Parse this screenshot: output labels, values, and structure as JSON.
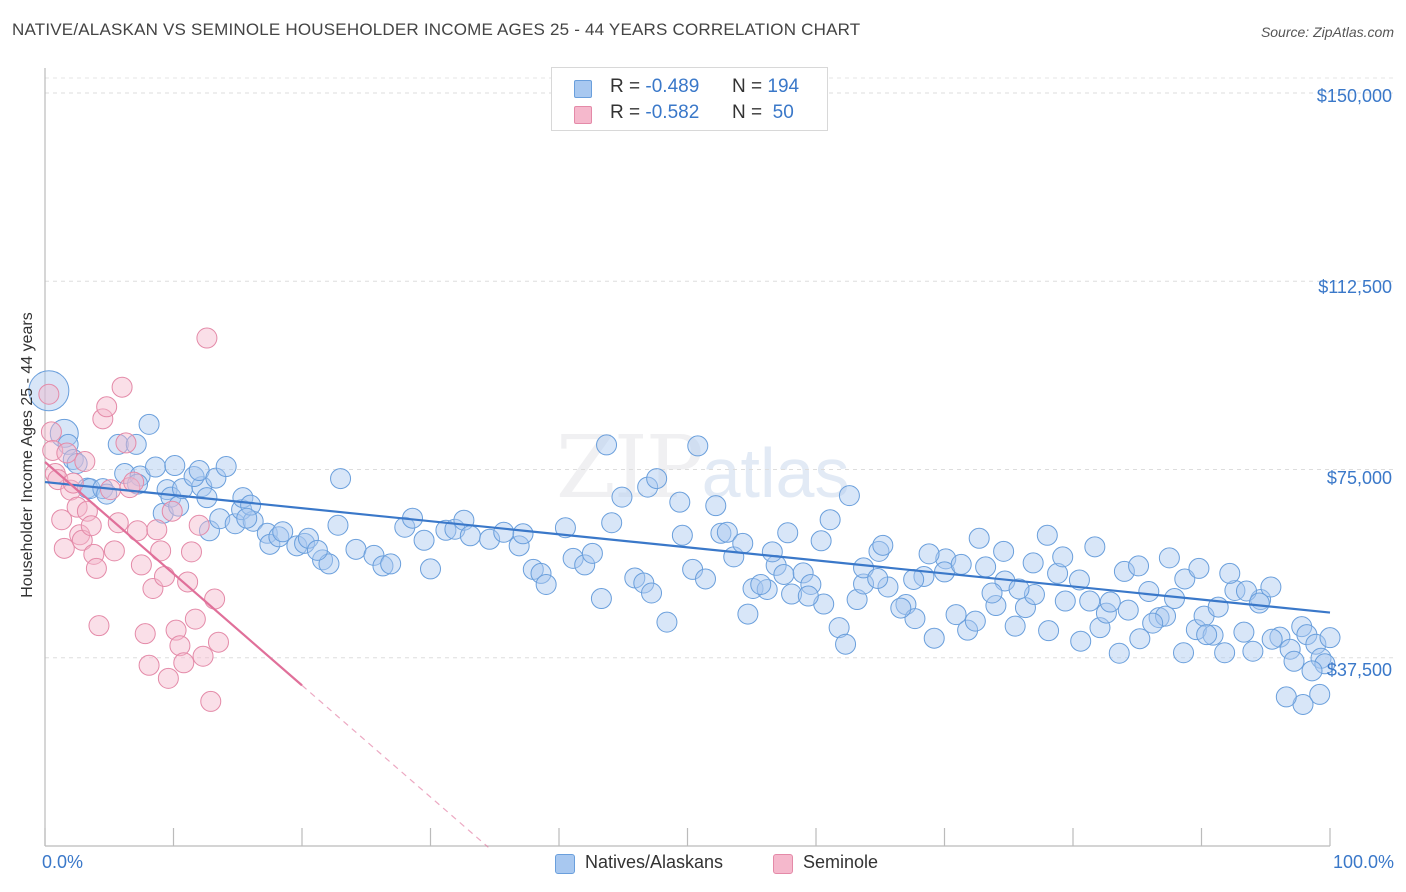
{
  "header": {
    "title": "NATIVE/ALASKAN VS SEMINOLE HOUSEHOLDER INCOME AGES 25 - 44 YEARS CORRELATION CHART",
    "source": "Source: ZipAtlas.com"
  },
  "watermark": {
    "part_a": "ZIP",
    "part_b": "atlas"
  },
  "stats": [
    {
      "r_label": "R =",
      "r_value": "-0.489",
      "n_label": "N =",
      "n_value": "194",
      "color": "#a8c8f0"
    },
    {
      "r_label": "R =",
      "r_value": "-0.582",
      "n_label": "N =",
      "n_value": "50",
      "color": "#f5b8cc"
    }
  ],
  "legend": [
    {
      "label": "Natives/Alaskans",
      "color": "#a8c8f0"
    },
    {
      "label": "Seminole",
      "color": "#f5b8cc"
    }
  ],
  "colors": {
    "blue": "#3a78c9",
    "blue_fill": "#a8c8f0",
    "pink": "#e0709a",
    "pink_fill": "#f5b8cc",
    "grid": "#d5d5d5",
    "tick_text": "#3a78c9"
  },
  "chart_data": {
    "type": "scatter",
    "title": "NATIVE/ALASKAN VS SEMINOLE HOUSEHOLDER INCOME AGES 25 - 44 YEARS CORRELATION CHART",
    "xlabel": "",
    "ylabel": "Householder Income Ages 25 - 44 years",
    "xlim": [
      0,
      100
    ],
    "ylim": [
      0,
      153000
    ],
    "x_tick_labels": [
      "0.0%",
      "100.0%"
    ],
    "y_ticks": [
      37500,
      75000,
      112500,
      150000
    ],
    "y_tick_labels": [
      "$37,500",
      "$75,000",
      "$112,500",
      "$150,000"
    ],
    "grid": true,
    "legend_position": "bottom-center",
    "series": [
      {
        "name": "Natives/Alaskans",
        "color": "#a8c8f0",
        "trend": {
          "x": [
            0,
            100
          ],
          "y": [
            72500,
            46500
          ]
        },
        "points": [
          [
            0.3,
            90700
          ],
          [
            1.5,
            82200
          ],
          [
            1.8,
            80000
          ],
          [
            2.2,
            77000
          ],
          [
            2.5,
            76200
          ],
          [
            3.3,
            71300
          ],
          [
            3.5,
            71200
          ],
          [
            4.5,
            71200
          ],
          [
            4.8,
            70100
          ],
          [
            5.7,
            80000
          ],
          [
            6.2,
            74200
          ],
          [
            7.1,
            80000
          ],
          [
            7.4,
            73700
          ],
          [
            7.2,
            72100
          ],
          [
            8.6,
            75500
          ],
          [
            9.2,
            66300
          ],
          [
            8.1,
            84000
          ],
          [
            9.5,
            71000
          ],
          [
            10.1,
            75800
          ],
          [
            9.8,
            69500
          ],
          [
            10.4,
            67700
          ],
          [
            10.7,
            71200
          ],
          [
            12.2,
            71600
          ],
          [
            11.6,
            73600
          ],
          [
            12.0,
            74800
          ],
          [
            12.8,
            62800
          ],
          [
            12.6,
            69400
          ],
          [
            13.3,
            73300
          ],
          [
            13.6,
            65200
          ],
          [
            14.1,
            75600
          ],
          [
            14.8,
            64200
          ],
          [
            15.3,
            67000
          ],
          [
            15.4,
            69400
          ],
          [
            16.2,
            64700
          ],
          [
            16.0,
            67900
          ],
          [
            17.3,
            62300
          ],
          [
            15.7,
            65300
          ],
          [
            17.5,
            60100
          ],
          [
            18.2,
            61600
          ],
          [
            18.5,
            62600
          ],
          [
            19.6,
            59800
          ],
          [
            20.2,
            60300
          ],
          [
            20.5,
            61300
          ],
          [
            21.6,
            57000
          ],
          [
            22.1,
            56200
          ],
          [
            21.2,
            58900
          ],
          [
            22.8,
            63900
          ],
          [
            23.0,
            73200
          ],
          [
            24.2,
            59100
          ],
          [
            25.6,
            57900
          ],
          [
            26.3,
            55800
          ],
          [
            26.9,
            56200
          ],
          [
            28.0,
            63500
          ],
          [
            28.6,
            65300
          ],
          [
            29.5,
            60900
          ],
          [
            30.0,
            55200
          ],
          [
            31.2,
            62900
          ],
          [
            31.9,
            63100
          ],
          [
            32.6,
            64900
          ],
          [
            33.1,
            61800
          ],
          [
            34.6,
            61100
          ],
          [
            35.7,
            62500
          ],
          [
            36.9,
            59800
          ],
          [
            37.2,
            62200
          ],
          [
            38.0,
            55100
          ],
          [
            38.6,
            54300
          ],
          [
            39.0,
            52100
          ],
          [
            40.5,
            63400
          ],
          [
            41.1,
            57300
          ],
          [
            42.0,
            56000
          ],
          [
            42.6,
            58300
          ],
          [
            43.3,
            49300
          ],
          [
            44.1,
            64400
          ],
          [
            44.9,
            69500
          ],
          [
            45.9,
            53400
          ],
          [
            46.6,
            52400
          ],
          [
            47.2,
            50400
          ],
          [
            48.4,
            44600
          ],
          [
            49.6,
            61900
          ],
          [
            50.4,
            55100
          ],
          [
            51.4,
            53200
          ],
          [
            52.6,
            62300
          ],
          [
            53.6,
            57600
          ],
          [
            54.7,
            46200
          ],
          [
            55.1,
            51300
          ],
          [
            56.2,
            51100
          ],
          [
            56.9,
            55900
          ],
          [
            57.5,
            54100
          ],
          [
            58.1,
            50200
          ],
          [
            59.0,
            54400
          ],
          [
            59.6,
            52100
          ],
          [
            60.6,
            48200
          ],
          [
            61.8,
            43500
          ],
          [
            62.3,
            40200
          ],
          [
            63.2,
            49100
          ],
          [
            63.7,
            52200
          ],
          [
            64.9,
            58700
          ],
          [
            65.6,
            51600
          ],
          [
            67.0,
            48100
          ],
          [
            67.7,
            45300
          ],
          [
            68.4,
            53700
          ],
          [
            69.2,
            41400
          ],
          [
            70.1,
            57200
          ],
          [
            70.9,
            46100
          ],
          [
            71.8,
            43000
          ],
          [
            72.4,
            44800
          ],
          [
            73.2,
            55600
          ],
          [
            74.0,
            47900
          ],
          [
            74.7,
            52800
          ],
          [
            75.5,
            43800
          ],
          [
            76.3,
            47500
          ],
          [
            77.0,
            50100
          ],
          [
            78.1,
            42900
          ],
          [
            78.8,
            54300
          ],
          [
            79.4,
            48800
          ],
          [
            80.6,
            40800
          ],
          [
            81.3,
            48800
          ],
          [
            82.1,
            43500
          ],
          [
            82.6,
            46400
          ],
          [
            83.6,
            38400
          ],
          [
            84.3,
            47000
          ],
          [
            85.2,
            41300
          ],
          [
            85.9,
            50700
          ],
          [
            86.7,
            45500
          ],
          [
            87.2,
            45800
          ],
          [
            87.9,
            49300
          ],
          [
            88.6,
            38500
          ],
          [
            89.6,
            43100
          ],
          [
            90.2,
            45800
          ],
          [
            90.9,
            42000
          ],
          [
            91.8,
            38500
          ],
          [
            92.6,
            50900
          ],
          [
            93.3,
            42600
          ],
          [
            94.0,
            38800
          ],
          [
            94.6,
            49100
          ],
          [
            95.4,
            51600
          ],
          [
            96.1,
            41600
          ],
          [
            96.9,
            39200
          ],
          [
            97.2,
            36800
          ],
          [
            97.8,
            43700
          ],
          [
            98.2,
            42100
          ],
          [
            98.9,
            40200
          ],
          [
            99.3,
            37400
          ],
          [
            100.0,
            41500
          ],
          [
            99.6,
            36300
          ],
          [
            99.2,
            30200
          ],
          [
            98.6,
            34900
          ],
          [
            97.9,
            28200
          ],
          [
            96.6,
            29700
          ],
          [
            43.7,
            79900
          ],
          [
            46.9,
            71500
          ],
          [
            47.6,
            73200
          ],
          [
            49.4,
            68500
          ],
          [
            50.8,
            79700
          ],
          [
            52.2,
            67800
          ],
          [
            53.1,
            62500
          ],
          [
            54.3,
            60300
          ],
          [
            55.7,
            52100
          ],
          [
            56.6,
            58600
          ],
          [
            57.8,
            62400
          ],
          [
            59.4,
            49800
          ],
          [
            60.4,
            60800
          ],
          [
            61.1,
            65000
          ],
          [
            62.6,
            69800
          ],
          [
            63.7,
            55400
          ],
          [
            64.8,
            53300
          ],
          [
            65.2,
            59900
          ],
          [
            66.6,
            47400
          ],
          [
            67.6,
            53100
          ],
          [
            68.8,
            58200
          ],
          [
            70.0,
            54600
          ],
          [
            71.3,
            56100
          ],
          [
            72.7,
            61300
          ],
          [
            73.7,
            50400
          ],
          [
            74.6,
            58700
          ],
          [
            75.8,
            51200
          ],
          [
            76.9,
            56400
          ],
          [
            78.0,
            61900
          ],
          [
            79.2,
            57600
          ],
          [
            80.5,
            53000
          ],
          [
            81.7,
            59600
          ],
          [
            82.9,
            48600
          ],
          [
            84.0,
            54700
          ],
          [
            85.1,
            55800
          ],
          [
            86.2,
            44400
          ],
          [
            87.5,
            57400
          ],
          [
            88.7,
            53200
          ],
          [
            89.8,
            55300
          ],
          [
            90.4,
            42100
          ],
          [
            91.3,
            47600
          ],
          [
            92.2,
            54300
          ],
          [
            93.5,
            50800
          ],
          [
            94.5,
            48400
          ],
          [
            95.5,
            41200
          ]
        ]
      },
      {
        "name": "Seminole",
        "color": "#f5b8cc",
        "trend": {
          "x": [
            0,
            20
          ],
          "y": [
            76500,
            32000
          ]
        },
        "points": [
          [
            0.3,
            90000
          ],
          [
            0.5,
            82500
          ],
          [
            0.6,
            78800
          ],
          [
            0.8,
            74200
          ],
          [
            1.0,
            73000
          ],
          [
            1.3,
            65000
          ],
          [
            1.5,
            59300
          ],
          [
            1.7,
            78300
          ],
          [
            2.0,
            70900
          ],
          [
            2.2,
            72300
          ],
          [
            2.5,
            67500
          ],
          [
            2.7,
            62000
          ],
          [
            2.9,
            60900
          ],
          [
            3.1,
            76600
          ],
          [
            3.3,
            66700
          ],
          [
            3.6,
            63800
          ],
          [
            3.8,
            58100
          ],
          [
            4.0,
            55300
          ],
          [
            4.2,
            43900
          ],
          [
            4.5,
            85100
          ],
          [
            4.8,
            87500
          ],
          [
            5.1,
            71000
          ],
          [
            5.4,
            58800
          ],
          [
            5.7,
            64400
          ],
          [
            6.0,
            91400
          ],
          [
            6.3,
            80300
          ],
          [
            6.6,
            71400
          ],
          [
            6.9,
            72500
          ],
          [
            7.2,
            62800
          ],
          [
            7.5,
            56000
          ],
          [
            7.8,
            42300
          ],
          [
            8.1,
            36000
          ],
          [
            8.4,
            51300
          ],
          [
            8.7,
            63000
          ],
          [
            9.0,
            58800
          ],
          [
            9.3,
            53700
          ],
          [
            9.6,
            33400
          ],
          [
            9.9,
            66700
          ],
          [
            10.2,
            43000
          ],
          [
            10.5,
            39900
          ],
          [
            10.8,
            36500
          ],
          [
            11.1,
            52600
          ],
          [
            11.4,
            58600
          ],
          [
            11.7,
            45200
          ],
          [
            12.0,
            63900
          ],
          [
            12.3,
            37800
          ],
          [
            12.6,
            101200
          ],
          [
            12.9,
            28800
          ],
          [
            13.2,
            49200
          ],
          [
            13.5,
            40600
          ]
        ]
      }
    ]
  }
}
